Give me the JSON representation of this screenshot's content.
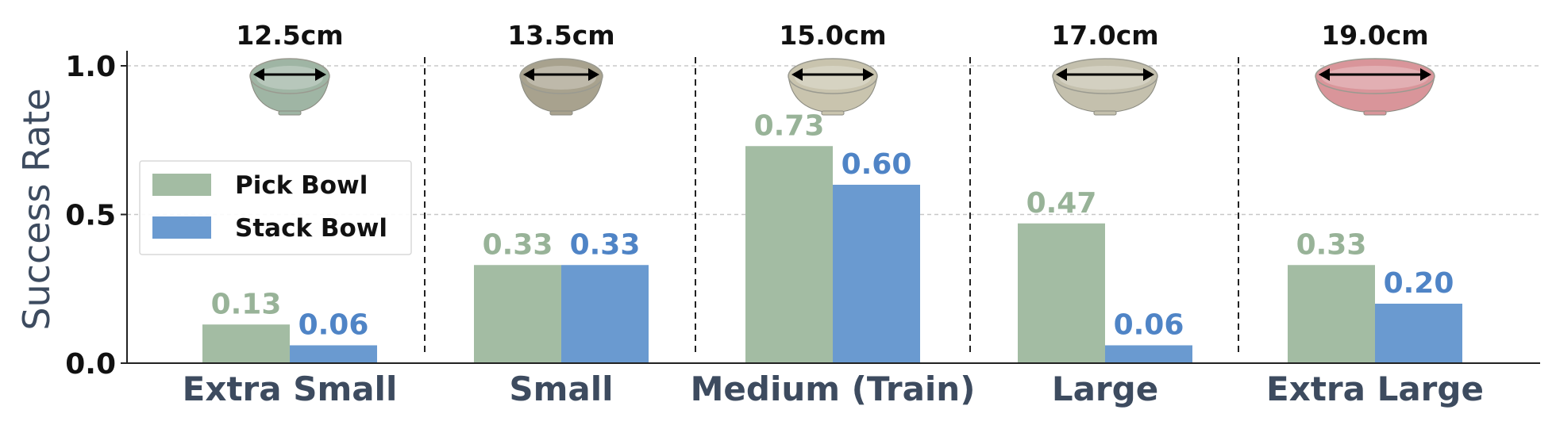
{
  "chart_data": {
    "type": "bar",
    "title": "",
    "xlabel": "",
    "ylabel": "Success Rate",
    "ylim": [
      0,
      1.05
    ],
    "yticks": [
      "0.0",
      "0.5",
      "1.0"
    ],
    "grid": "horizontal-dashed",
    "legend_position": "left",
    "categories": [
      "Extra Small",
      "Small",
      "Medium (Train)",
      "Large",
      "Extra Large"
    ],
    "bowl_sizes": [
      "12.5cm",
      "13.5cm",
      "15.0cm",
      "17.0cm",
      "19.0cm"
    ],
    "bowl_colors": [
      "#9fb5a4",
      "#a8a28e",
      "#c9c4ae",
      "#c4c0ad",
      "#d9959a"
    ],
    "series": [
      {
        "name": "Pick Bowl",
        "color": "#a3bca3",
        "values": [
          0.13,
          0.33,
          0.73,
          0.47,
          0.33
        ],
        "labels": [
          "0.13",
          "0.33",
          "0.73",
          "0.47",
          "0.33"
        ]
      },
      {
        "name": "Stack Bowl",
        "color": "#6a9ad0",
        "values": [
          0.06,
          0.33,
          0.6,
          0.06,
          0.2
        ],
        "labels": [
          "0.06",
          "0.33",
          "0.60",
          "0.06",
          "0.20"
        ]
      }
    ]
  }
}
